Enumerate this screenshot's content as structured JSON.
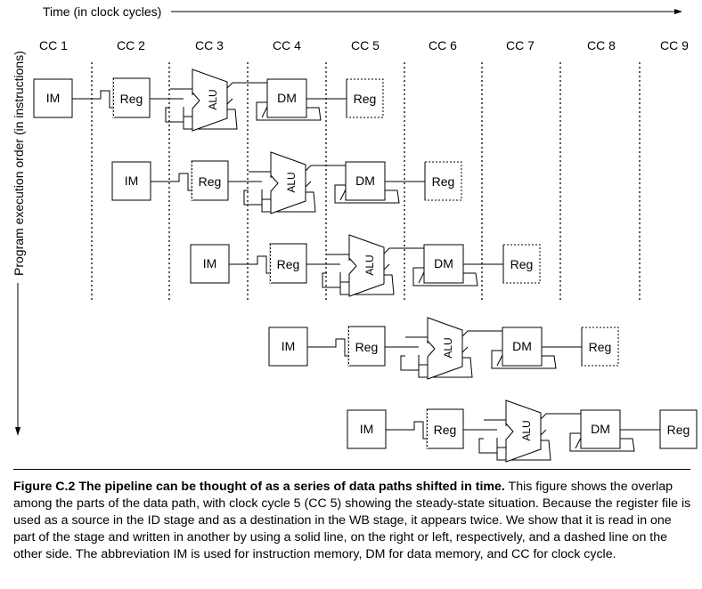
{
  "axis": {
    "time_label": "Time (in clock cycles)",
    "order_label": "Program execution order (in instructions)"
  },
  "clock_cycles": [
    "CC 1",
    "CC 2",
    "CC 3",
    "CC 4",
    "CC 5",
    "CC 6",
    "CC 7",
    "CC 8",
    "CC 9"
  ],
  "units": {
    "im": "IM",
    "reg": "Reg",
    "alu": "ALU",
    "dm": "DM"
  },
  "instruction_count": 5,
  "caption": {
    "figure_id": "Figure C.2",
    "title": "The pipeline can be thought of as a series of data paths shifted in time.",
    "body": "This figure shows the overlap among the parts of the data path, with clock cycle 5 (CC 5) showing the steady-state situation. Because the register file is used as a source in the ID stage and as a destination in the WB stage, it appears twice. We show that it is read in one part of the stage and written in another by using a solid line, on the right or left, respectively, and a dashed line on the other side. The abbreviation IM is used for instruction memory, DM for data memory, and CC for clock cycle."
  }
}
